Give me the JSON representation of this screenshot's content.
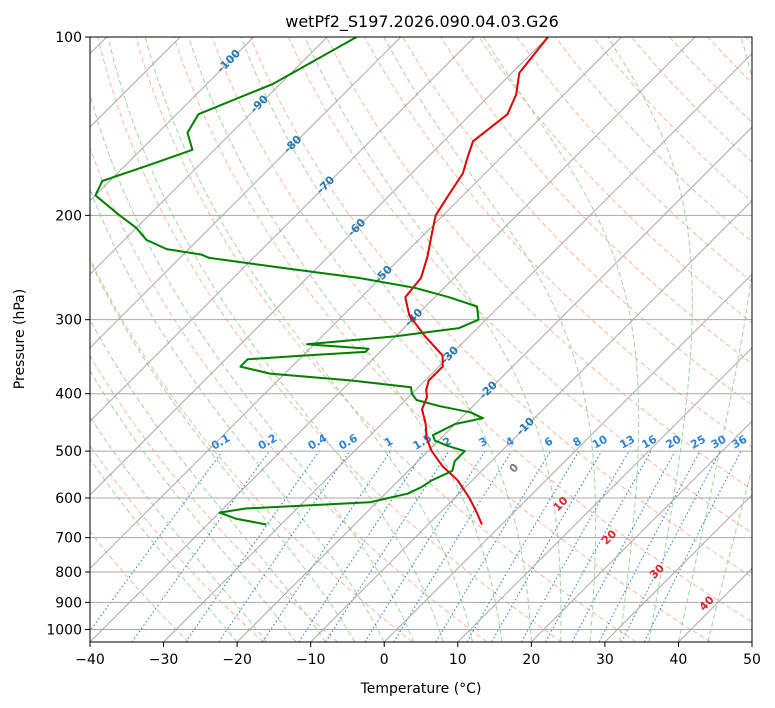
{
  "chart_data": {
    "type": "line",
    "title": "wetPf2_S197.2026.090.04.03.G26",
    "xlabel": "Temperature (°C)",
    "ylabel": "Pressure (hPa)",
    "xlim": [
      -40,
      50
    ],
    "ylim": [
      1050,
      100
    ],
    "y_scale": "log",
    "grid": true,
    "x_ticks": [
      "−40",
      "−30",
      "−20",
      "−10",
      "0",
      "10",
      "20",
      "30",
      "40",
      "50"
    ],
    "y_ticks": [
      "100",
      "200",
      "300",
      "400",
      "500",
      "600",
      "700",
      "800",
      "900",
      "1000"
    ],
    "series": [
      {
        "color": "#e00000",
        "p": [
          100,
          115,
          125,
          135,
          150,
          160,
          170,
          185,
          200,
          215,
          235,
          255,
          275,
          295,
          320,
          345,
          360,
          380,
          395,
          405,
          425,
          450,
          475,
          500,
          530,
          560,
          600,
          635,
          665
        ],
        "T": [
          -60,
          -59,
          -56.5,
          -55,
          -56,
          -54.5,
          -53,
          -52,
          -51,
          -49,
          -46.5,
          -44.5,
          -44,
          -41,
          -36,
          -31,
          -29.5,
          -29.5,
          -28.5,
          -27.5,
          -26.5,
          -24,
          -22,
          -19.5,
          -16,
          -12,
          -8,
          -5,
          -2.7
        ]
      },
      {
        "color": "#008000",
        "p": [
          100,
          120,
          135,
          145,
          155,
          165,
          175,
          185,
          200,
          210,
          220,
          228,
          233,
          236,
          245,
          255,
          265,
          275,
          285,
          300,
          310,
          320,
          330,
          336,
          340,
          345,
          350,
          360,
          370,
          380,
          390,
          400,
          410,
          420,
          430,
          440,
          450,
          470,
          480,
          490,
          500,
          520,
          540,
          560,
          575,
          590,
          610,
          625,
          635,
          650,
          665
        ],
        "T": [
          -86,
          -91,
          -97,
          -96,
          -93,
          -97,
          -101,
          -100,
          -94,
          -90,
          -87,
          -83,
          -77.5,
          -76,
          -65,
          -53,
          -44,
          -38,
          -33,
          -31,
          -32.5,
          -40,
          -51,
          -42,
          -42,
          -50,
          -57,
          -57,
          -52,
          -40,
          -31,
          -30,
          -28.5,
          -24.5,
          -19.5,
          -17,
          -20,
          -21.5,
          -20.5,
          -18,
          -15,
          -15,
          -14,
          -15.5,
          -16,
          -17,
          -21,
          -37,
          -40,
          -37,
          -32
        ]
      }
    ],
    "dry_adiabat_labels": [
      "-100",
      "-90",
      "-80",
      "-70",
      "-60",
      "-50",
      "-40",
      "-30",
      "-20",
      "-10",
      "0",
      "10",
      "20",
      "30",
      "40"
    ],
    "mixing_ratio_labels": [
      "0.1",
      "0.2",
      "0.4",
      "0.6",
      "1",
      "1.5",
      "2",
      "3",
      "4",
      "6",
      "8",
      "10",
      "13",
      "16",
      "20",
      "25",
      "30",
      "36"
    ],
    "colors": {
      "temperature": "#e00000",
      "dewpoint": "#008000",
      "isotherm": "#a8a8a8",
      "dry_adiabat": "#f5a582",
      "moist_adiabat": "#8cc88c",
      "mixing_ratio": "#2b84d8",
      "isotherm_label": "#1f77b4",
      "warm_label": "#d62728"
    }
  }
}
